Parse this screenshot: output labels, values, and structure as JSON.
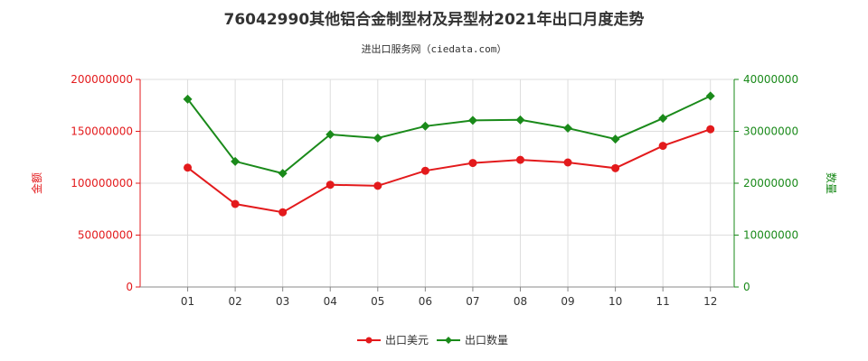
{
  "chart_data": {
    "type": "line",
    "title": "76042990其他铝合金制型材及异型材2021年出口月度走势",
    "subtitle": "进出口服务网（ciedata.com）",
    "categories": [
      "01",
      "02",
      "03",
      "04",
      "05",
      "06",
      "07",
      "08",
      "09",
      "10",
      "11",
      "12"
    ],
    "y_left": {
      "label": "金额",
      "range": [
        0,
        200000000
      ],
      "ticks": [
        "0",
        "50000000",
        "100000000",
        "150000000",
        "200000000"
      ],
      "color": "#e31a1c"
    },
    "y_right": {
      "label": "数量",
      "range": [
        0,
        40000000
      ],
      "ticks": [
        "0",
        "10000000",
        "20000000",
        "30000000",
        "40000000"
      ],
      "color": "#1a8a1a"
    },
    "series": [
      {
        "name": "出口美元",
        "axis": "left",
        "color": "#e31a1c",
        "marker": "circle",
        "values": [
          115000000,
          80000000,
          72000000,
          98500000,
          97500000,
          112000000,
          119500000,
          122500000,
          120000000,
          114500000,
          136000000,
          152000000
        ]
      },
      {
        "name": "出口数量",
        "axis": "right",
        "color": "#1a8a1a",
        "marker": "diamond",
        "values": [
          36200000,
          24200000,
          21900000,
          29400000,
          28700000,
          31000000,
          32100000,
          32200000,
          30600000,
          28500000,
          32500000,
          36800000
        ]
      }
    ],
    "grid": true,
    "legend_position": "bottom-center"
  }
}
